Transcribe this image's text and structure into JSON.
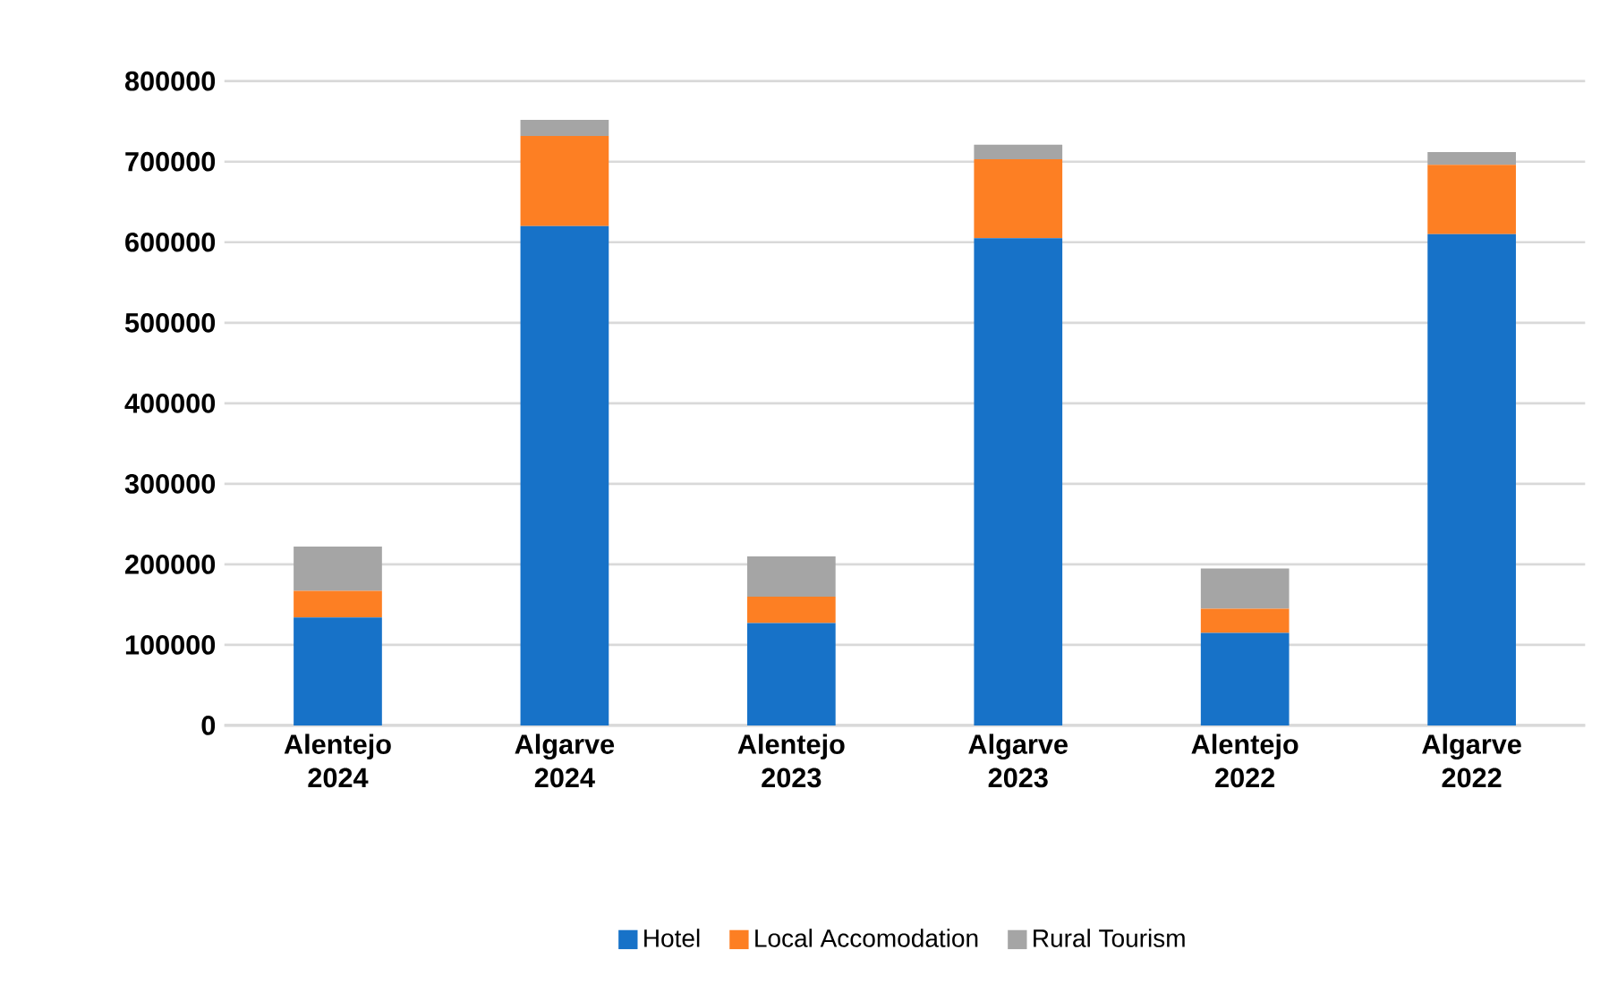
{
  "chart_data": {
    "type": "bar",
    "stacked": true,
    "categories": [
      "Alentejo 2024",
      "Algarve 2024",
      "Alentejo 2023",
      "Algarve 2023",
      "Alentejo 2022",
      "Algarve 2022"
    ],
    "series": [
      {
        "name": "Hotel",
        "color": "#1772c8",
        "values": [
          134000,
          620000,
          127000,
          605000,
          115000,
          610000
        ]
      },
      {
        "name": "Local Accomodation",
        "color": "#fd7f23",
        "values": [
          33000,
          112000,
          33000,
          98000,
          30000,
          86000
        ]
      },
      {
        "name": "Rural Tourism",
        "color": "#a5a5a5",
        "values": [
          55000,
          20000,
          50000,
          18000,
          50000,
          16000
        ]
      }
    ],
    "ylim": [
      0,
      800000
    ],
    "yticks": [
      0,
      100000,
      200000,
      300000,
      400000,
      500000,
      600000,
      700000,
      800000
    ],
    "grid": "y",
    "legend": "bottom"
  }
}
